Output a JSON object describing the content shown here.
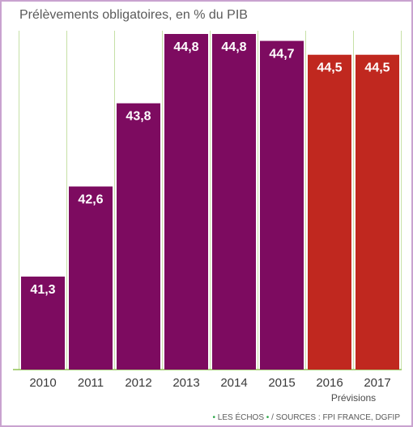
{
  "chart_data": {
    "type": "bar",
    "title": "Prélèvements obligatoires, en % du PIB",
    "categories": [
      "2010",
      "2011",
      "2012",
      "2013",
      "2014",
      "2015",
      "2016",
      "2017"
    ],
    "values": [
      41.3,
      42.6,
      43.8,
      44.8,
      44.8,
      44.7,
      44.5,
      44.5
    ],
    "value_labels": [
      "41,3",
      "42,6",
      "43,8",
      "44,8",
      "44,8",
      "44,7",
      "44,5",
      "44,5"
    ],
    "bar_colors": [
      "#7d0b60",
      "#7d0b60",
      "#7d0b60",
      "#7d0b60",
      "#7d0b60",
      "#7d0b60",
      "#c0281f",
      "#c0281f"
    ],
    "forecast_label": "Prévisions",
    "forecast_categories": [
      "2016",
      "2017"
    ],
    "grid": true,
    "xlabel": "",
    "ylabel": ""
  },
  "colors": {
    "actual": "#7d0b60",
    "forecast": "#c0281f",
    "gridline": "#c6e0a6",
    "baseline": "#8fc454"
  },
  "footer": {
    "dot": "•",
    "brand": "LES ÉCHOS",
    "sources": "/ SOURCES : FPI FRANCE, DGFIP"
  }
}
